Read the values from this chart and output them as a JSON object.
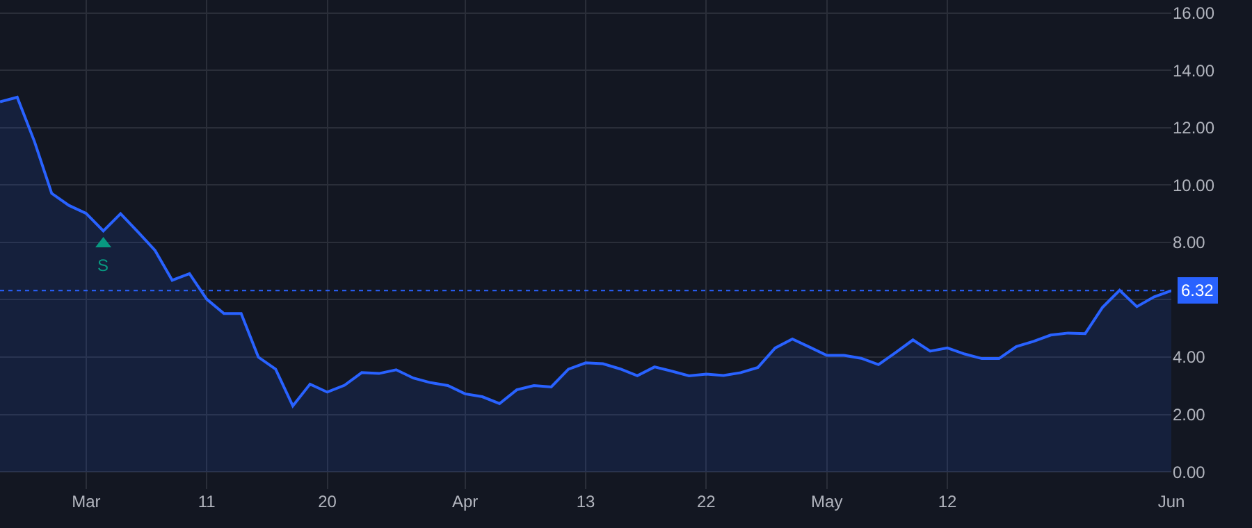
{
  "chart_data": {
    "type": "area",
    "categories": [
      null,
      null,
      null,
      null,
      null,
      "Mar",
      null,
      null,
      null,
      null,
      null,
      null,
      "11",
      null,
      null,
      null,
      null,
      null,
      null,
      "20",
      null,
      null,
      null,
      null,
      null,
      null,
      null,
      "Apr",
      null,
      null,
      null,
      null,
      null,
      null,
      "13",
      null,
      null,
      null,
      null,
      null,
      null,
      "22",
      null,
      null,
      null,
      null,
      null,
      null,
      "May",
      null,
      null,
      null,
      null,
      null,
      null,
      "12",
      null,
      null,
      null,
      null,
      null,
      null,
      null,
      null,
      null,
      null,
      null,
      null,
      "Jun"
    ],
    "series": [
      {
        "color": "#2962ff",
        "values": [
          12.9,
          13.06,
          11.52,
          9.71,
          9.29,
          9.01,
          8.4,
          9.0,
          8.37,
          7.72,
          6.68,
          6.91,
          6.02,
          5.52,
          5.52,
          4.0,
          3.58,
          2.3,
          3.06,
          2.78,
          3.02,
          3.46,
          3.43,
          3.56,
          3.27,
          3.11,
          3.01,
          2.72,
          2.62,
          2.38,
          2.86,
          3.01,
          2.96,
          3.58,
          3.8,
          3.77,
          3.59,
          3.35,
          3.66,
          3.51,
          3.35,
          3.41,
          3.36,
          3.46,
          3.64,
          4.32,
          4.63,
          4.35,
          4.06,
          4.06,
          3.96,
          3.74,
          4.16,
          4.6,
          4.21,
          4.32,
          4.11,
          3.95,
          3.95,
          4.37,
          4.55,
          4.77,
          4.84,
          4.82,
          5.73,
          6.33,
          5.76,
          6.1,
          6.32
        ]
      },
      {
        "type": "scatter",
        "color": "#089981",
        "marker": "triangle",
        "values": [
          null,
          null,
          null,
          null,
          null,
          null,
          7.95,
          null,
          null,
          null,
          null,
          null,
          null,
          null,
          null,
          null,
          null,
          null,
          null,
          null,
          null,
          null,
          null,
          null,
          null,
          null,
          null,
          null,
          null,
          null,
          null,
          null,
          null,
          null,
          null,
          null,
          null,
          null,
          null,
          null,
          null,
          null,
          null,
          null,
          null,
          null,
          null,
          null,
          null,
          null,
          null,
          null,
          null,
          null,
          null,
          null,
          null,
          null,
          null,
          null,
          null,
          null,
          null,
          null,
          null,
          null,
          null,
          null,
          null
        ]
      }
    ],
    "annotations": [
      "S"
    ],
    "ylim": [
      -0.6,
      16.45
    ],
    "yticks": [
      {
        "value": 0,
        "label": "0.00"
      },
      {
        "value": 2,
        "label": "2.00"
      },
      {
        "value": 4,
        "label": "4.00"
      },
      {
        "value": 6,
        "label": null
      },
      {
        "value": 8,
        "label": "8.00"
      },
      {
        "value": 10,
        "label": "10.00"
      },
      {
        "value": 12,
        "label": "12.00"
      },
      {
        "value": 14,
        "label": "14.00"
      },
      {
        "value": 16,
        "label": "16.00"
      }
    ],
    "ref_lines": [
      {
        "axis": "y",
        "value": 6.32,
        "label": "6.32",
        "color": "#2962ff",
        "line_style": "dotted"
      }
    ],
    "grid": true,
    "legend": false
  }
}
